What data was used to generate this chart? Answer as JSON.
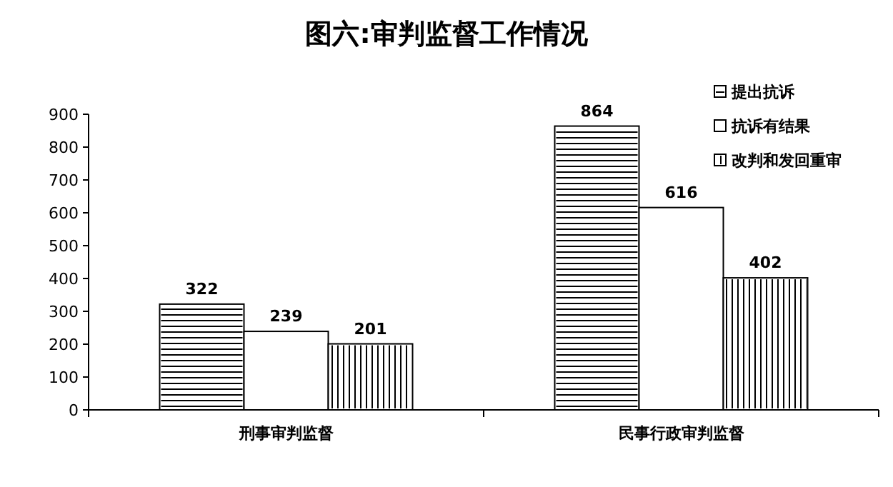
{
  "chart_data": {
    "type": "bar",
    "title": "图六:审判监督工作情况",
    "categories": [
      "刑事审判监督",
      "民事行政审判监督"
    ],
    "series": [
      {
        "name": "提出抗诉",
        "color": "#ffffff",
        "values": [
          322,
          864
        ]
      },
      {
        "name": "抗诉有结果",
        "color": "#ffffff",
        "values": [
          239,
          616
        ]
      },
      {
        "name": "改判和发回重审",
        "color": "#ffffff",
        "values": [
          201,
          402
        ]
      }
    ],
    "ylim": [
      0,
      900
    ],
    "yticks": [
      0,
      100,
      200,
      300,
      400,
      500,
      600,
      700,
      800,
      900
    ],
    "data_labels": true,
    "legend": "top right",
    "grid": false
  }
}
